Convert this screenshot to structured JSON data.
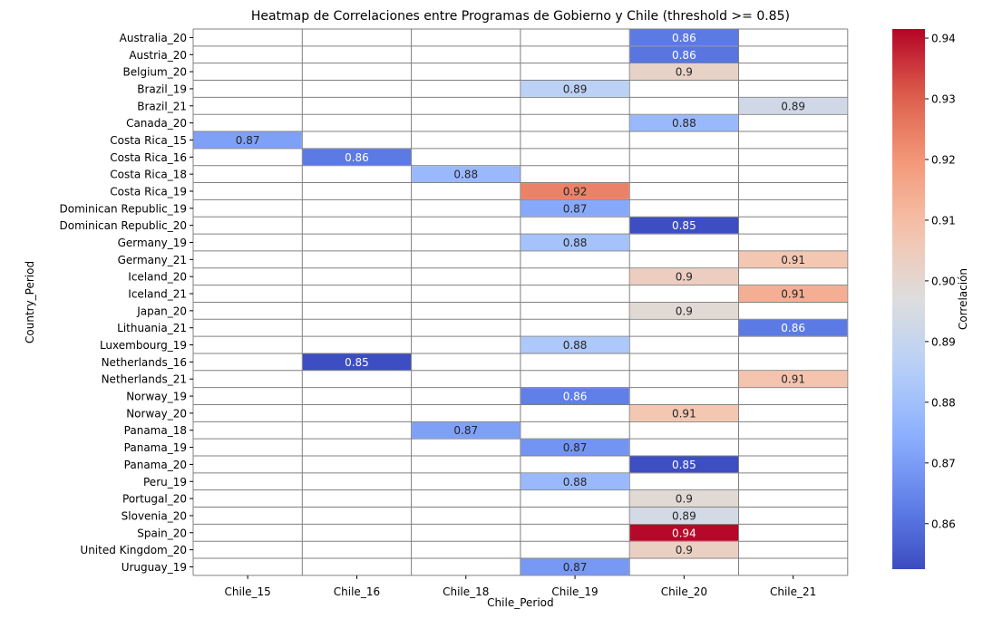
{
  "chart_data": {
    "type": "heatmap",
    "title": "Heatmap de Correlaciones entre Programas de Gobierno y Chile (threshold >= 0.85)",
    "xlabel": "Chile_Period",
    "ylabel": "Country_Period",
    "colorbar_label": "Correlación",
    "colormap": "coolwarm",
    "vmin": 0.8525,
    "vmax": 0.9415,
    "colorbar_ticks": [
      "0.86",
      "0.87",
      "0.88",
      "0.89",
      "0.90",
      "0.91",
      "0.92",
      "0.93",
      "0.94"
    ],
    "columns": [
      "Chile_15",
      "Chile_16",
      "Chile_18",
      "Chile_19",
      "Chile_20",
      "Chile_21"
    ],
    "rows": [
      "Australia_20",
      "Austria_20",
      "Belgium_20",
      "Brazil_19",
      "Brazil_21",
      "Canada_20",
      "Costa Rica_15",
      "Costa Rica_16",
      "Costa Rica_18",
      "Costa Rica_19",
      "Dominican Republic_19",
      "Dominican Republic_20",
      "Germany_19",
      "Germany_21",
      "Iceland_20",
      "Iceland_21",
      "Japan_20",
      "Lithuania_21",
      "Luxembourg_19",
      "Netherlands_16",
      "Netherlands_21",
      "Norway_19",
      "Norway_20",
      "Panama_18",
      "Panama_19",
      "Panama_20",
      "Peru_19",
      "Portugal_20",
      "Slovenia_20",
      "Spain_20",
      "United Kingdom_20",
      "Uruguay_19"
    ],
    "cells": [
      {
        "row": "Australia_20",
        "col": "Chile_20",
        "value": 0.862,
        "label": "0.86"
      },
      {
        "row": "Austria_20",
        "col": "Chile_20",
        "value": 0.861,
        "label": "0.86"
      },
      {
        "row": "Belgium_20",
        "col": "Chile_20",
        "value": 0.902,
        "label": "0.9"
      },
      {
        "row": "Brazil_19",
        "col": "Chile_19",
        "value": 0.887,
        "label": "0.89"
      },
      {
        "row": "Brazil_21",
        "col": "Chile_21",
        "value": 0.893,
        "label": "0.89"
      },
      {
        "row": "Canada_20",
        "col": "Chile_20",
        "value": 0.878,
        "label": "0.88"
      },
      {
        "row": "Costa Rica_15",
        "col": "Chile_15",
        "value": 0.871,
        "label": "0.87"
      },
      {
        "row": "Costa Rica_16",
        "col": "Chile_16",
        "value": 0.862,
        "label": "0.86"
      },
      {
        "row": "Costa Rica_18",
        "col": "Chile_18",
        "value": 0.878,
        "label": "0.88"
      },
      {
        "row": "Costa Rica_19",
        "col": "Chile_19",
        "value": 0.924,
        "label": "0.92"
      },
      {
        "row": "Dominican Republic_19",
        "col": "Chile_19",
        "value": 0.873,
        "label": "0.87"
      },
      {
        "row": "Dominican Republic_20",
        "col": "Chile_20",
        "value": 0.853,
        "label": "0.85"
      },
      {
        "row": "Germany_19",
        "col": "Chile_19",
        "value": 0.881,
        "label": "0.88"
      },
      {
        "row": "Germany_21",
        "col": "Chile_21",
        "value": 0.907,
        "label": "0.91"
      },
      {
        "row": "Iceland_20",
        "col": "Chile_20",
        "value": 0.904,
        "label": "0.9"
      },
      {
        "row": "Iceland_21",
        "col": "Chile_21",
        "value": 0.914,
        "label": "0.91"
      },
      {
        "row": "Japan_20",
        "col": "Chile_20",
        "value": 0.899,
        "label": "0.9"
      },
      {
        "row": "Lithuania_21",
        "col": "Chile_21",
        "value": 0.862,
        "label": "0.86"
      },
      {
        "row": "Luxembourg_19",
        "col": "Chile_19",
        "value": 0.883,
        "label": "0.88"
      },
      {
        "row": "Netherlands_16",
        "col": "Chile_16",
        "value": 0.853,
        "label": "0.85"
      },
      {
        "row": "Netherlands_21",
        "col": "Chile_21",
        "value": 0.908,
        "label": "0.91"
      },
      {
        "row": "Norway_19",
        "col": "Chile_19",
        "value": 0.863,
        "label": "0.86"
      },
      {
        "row": "Norway_20",
        "col": "Chile_20",
        "value": 0.907,
        "label": "0.91"
      },
      {
        "row": "Panama_18",
        "col": "Chile_18",
        "value": 0.871,
        "label": "0.87"
      },
      {
        "row": "Panama_19",
        "col": "Chile_19",
        "value": 0.868,
        "label": "0.87"
      },
      {
        "row": "Panama_20",
        "col": "Chile_20",
        "value": 0.853,
        "label": "0.85"
      },
      {
        "row": "Peru_19",
        "col": "Chile_19",
        "value": 0.878,
        "label": "0.88"
      },
      {
        "row": "Portugal_20",
        "col": "Chile_20",
        "value": 0.899,
        "label": "0.9"
      },
      {
        "row": "Slovenia_20",
        "col": "Chile_20",
        "value": 0.894,
        "label": "0.89"
      },
      {
        "row": "Spain_20",
        "col": "Chile_20",
        "value": 0.941,
        "label": "0.94"
      },
      {
        "row": "United Kingdom_20",
        "col": "Chile_20",
        "value": 0.903,
        "label": "0.9"
      },
      {
        "row": "Uruguay_19",
        "col": "Chile_19",
        "value": 0.869,
        "label": "0.87"
      }
    ]
  }
}
